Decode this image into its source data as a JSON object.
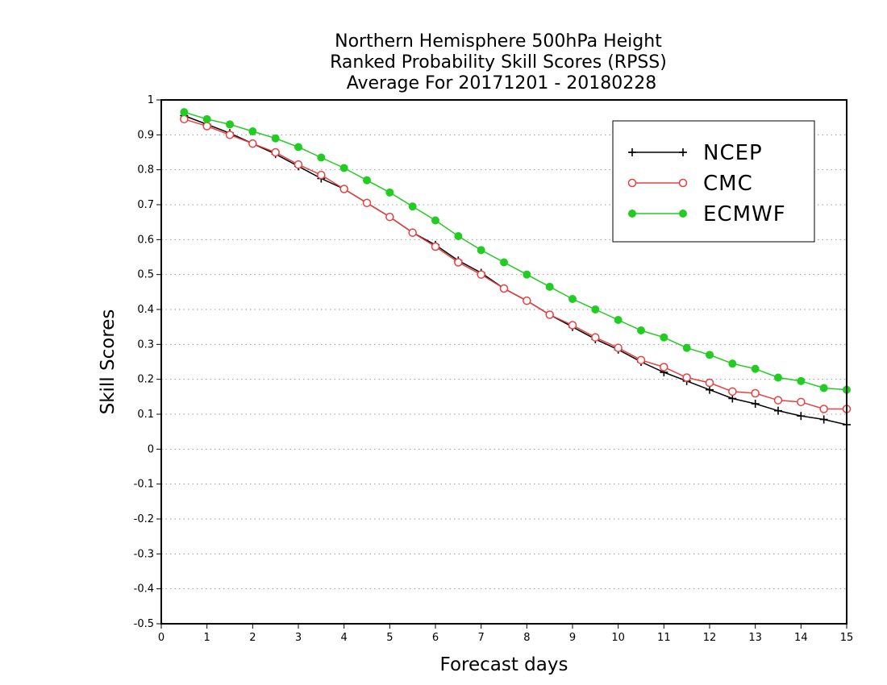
{
  "chart_data": {
    "type": "line",
    "title_lines": [
      "Northern Hemisphere 500hPa Height",
      "Ranked Probability Skill Scores (RPSS)",
      "Average For 20171201 - 20180228"
    ],
    "xlabel": "Forecast days",
    "ylabel": "Skill Scores",
    "xlim": [
      0,
      15
    ],
    "ylim": [
      -0.5,
      1
    ],
    "x_ticks": [
      "0",
      "1",
      "2",
      "3",
      "4",
      "5",
      "6",
      "7",
      "8",
      "9",
      "10",
      "11",
      "12",
      "13",
      "14",
      "15"
    ],
    "y_ticks": [
      "1",
      "0.9",
      "0.8",
      "0.7",
      "0.6",
      "0.5",
      "0.4",
      "0.3",
      "0.2",
      "0.1",
      "0",
      "-0.1",
      "-0.2",
      "-0.3",
      "-0.4",
      "-0.5"
    ],
    "grid": "horizontal dotted",
    "legend_position": "top-right",
    "x": [
      0.5,
      1,
      1.5,
      2,
      2.5,
      3,
      3.5,
      4,
      4.5,
      5,
      5.5,
      6,
      6.5,
      7,
      7.5,
      8,
      8.5,
      9,
      9.5,
      10,
      10.5,
      11,
      11.5,
      12,
      12.5,
      13,
      13.5,
      14,
      14.5,
      15
    ],
    "series": [
      {
        "name": "NCEP",
        "color": "#000000",
        "marker": "plus",
        "values": [
          0.955,
          0.93,
          0.905,
          0.875,
          0.845,
          0.81,
          0.775,
          0.745,
          0.705,
          0.665,
          0.62,
          0.585,
          0.54,
          0.505,
          0.46,
          0.425,
          0.385,
          0.35,
          0.315,
          0.285,
          0.25,
          0.22,
          0.195,
          0.17,
          0.145,
          0.13,
          0.11,
          0.095,
          0.085,
          0.07
        ]
      },
      {
        "name": "CMC",
        "color": "#e84040",
        "marker": "open-circle",
        "values": [
          0.945,
          0.925,
          0.9,
          0.875,
          0.85,
          0.815,
          0.785,
          0.745,
          0.705,
          0.665,
          0.62,
          0.58,
          0.535,
          0.5,
          0.46,
          0.425,
          0.385,
          0.355,
          0.32,
          0.29,
          0.255,
          0.235,
          0.205,
          0.19,
          0.165,
          0.16,
          0.14,
          0.135,
          0.115,
          0.115
        ]
      },
      {
        "name": "ECMWF",
        "color": "#22cc22",
        "marker": "filled-circle",
        "values": [
          0.965,
          0.945,
          0.93,
          0.91,
          0.89,
          0.865,
          0.835,
          0.805,
          0.77,
          0.735,
          0.695,
          0.655,
          0.61,
          0.57,
          0.535,
          0.5,
          0.465,
          0.43,
          0.4,
          0.37,
          0.34,
          0.32,
          0.29,
          0.27,
          0.245,
          0.23,
          0.205,
          0.195,
          0.175,
          0.17
        ]
      }
    ]
  }
}
